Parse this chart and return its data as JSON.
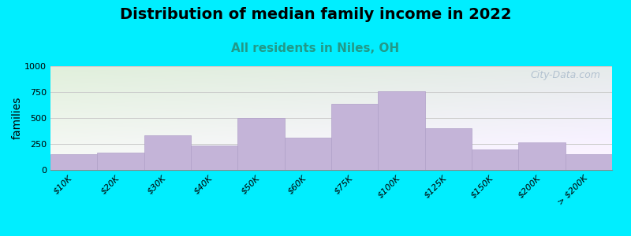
{
  "title": "Distribution of median family income in 2022",
  "subtitle": "All residents in Niles, OH",
  "ylabel": "families",
  "categories": [
    "$10K",
    "$20K",
    "$30K",
    "$40K",
    "$50K",
    "$60K",
    "$75K",
    "$100K",
    "$125K",
    "$150K",
    "$200K",
    "> $200K"
  ],
  "values": [
    150,
    170,
    330,
    235,
    500,
    310,
    635,
    760,
    400,
    200,
    265,
    150
  ],
  "bar_color": "#c4b4d8",
  "bar_edge_color": "#b0a0c8",
  "ylim": [
    0,
    1000
  ],
  "yticks": [
    0,
    250,
    500,
    750,
    1000
  ],
  "bg_outer": "#00eeff",
  "grid_color": "#cccccc",
  "title_fontsize": 14,
  "subtitle_fontsize": 11,
  "subtitle_color": "#229988",
  "ylabel_fontsize": 10,
  "watermark": "City-Data.com",
  "watermark_color": "#aabbcc",
  "bar_width": 1.0
}
